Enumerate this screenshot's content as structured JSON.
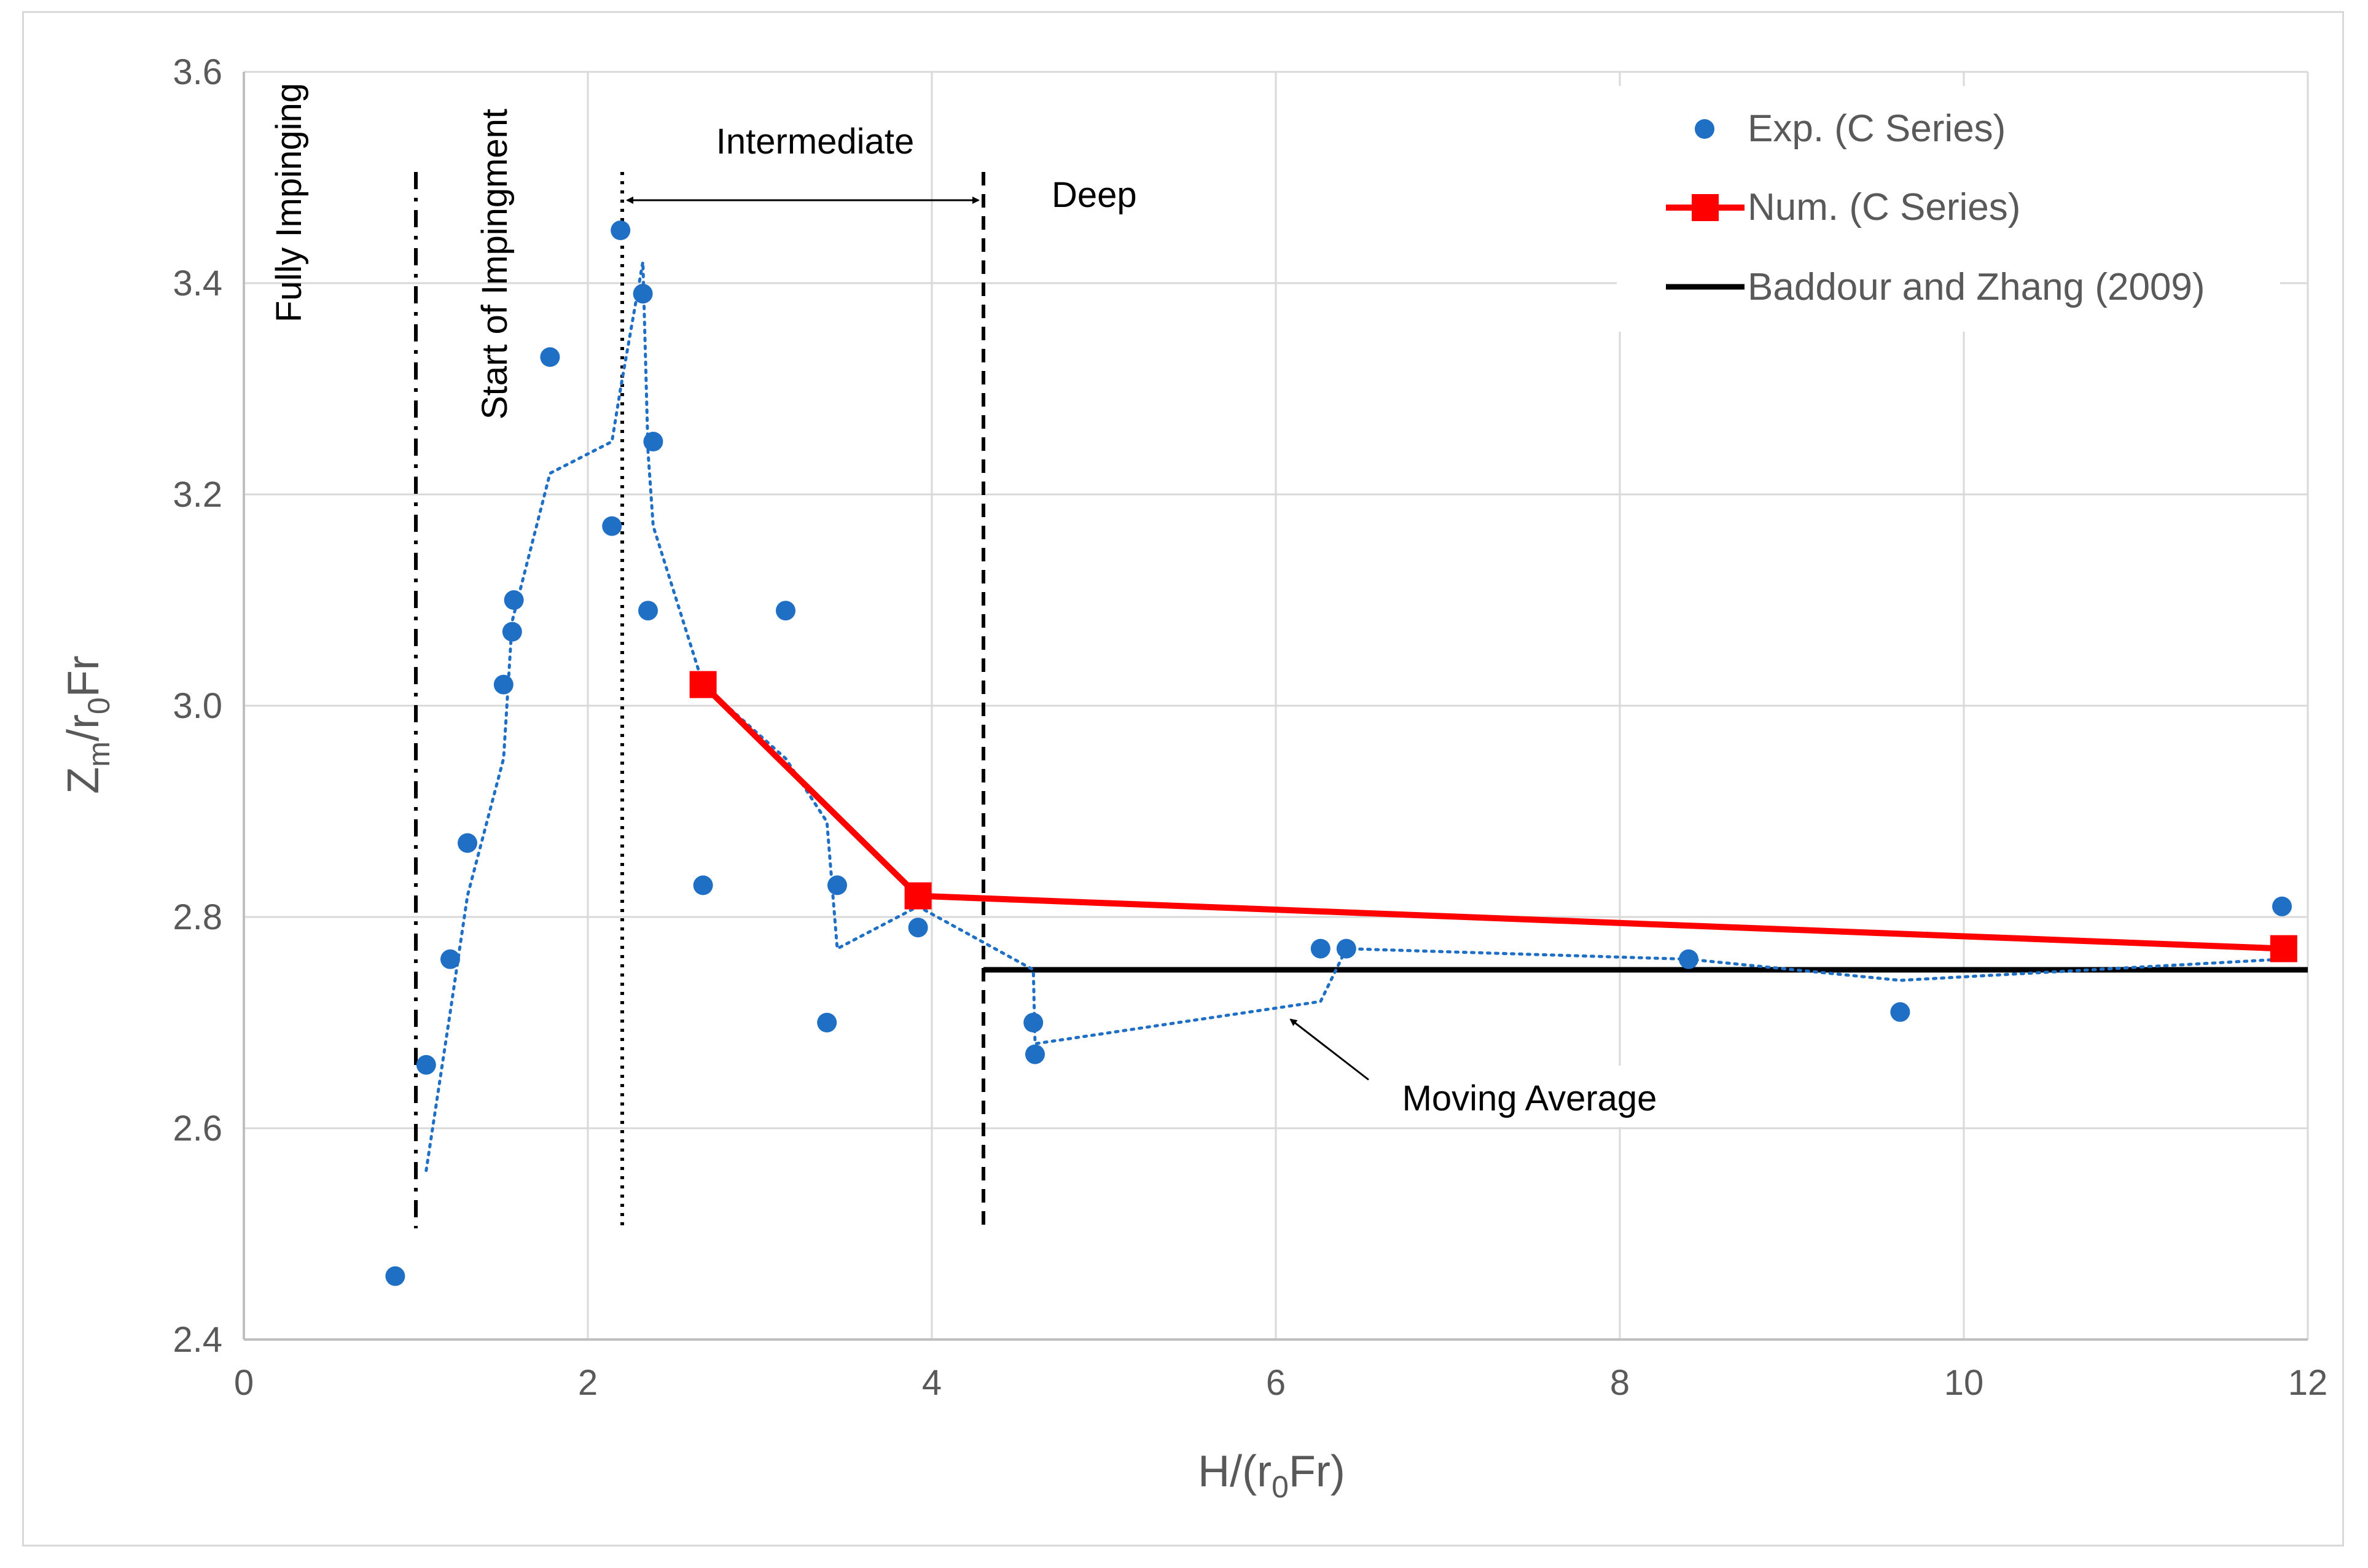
{
  "chart_data": {
    "type": "scatter",
    "title": "",
    "xlabel": "H/(r0Fr)",
    "ylabel": "Zm/r0Fr",
    "xlim": [
      0,
      12
    ],
    "ylim": [
      2.4,
      3.6
    ],
    "x_ticks": [
      "0",
      "2",
      "4",
      "6",
      "8",
      "10",
      "12"
    ],
    "y_ticks": [
      "2.4",
      "2.6",
      "2.8",
      "3.0",
      "3.2",
      "3.4",
      "3.6"
    ],
    "grid": true,
    "legend_position": "top-right",
    "series": [
      {
        "name": "Exp. (C Series)",
        "kind": "scatter",
        "color": "#1f6fc5",
        "x": [
          0.88,
          1.06,
          1.2,
          1.3,
          1.51,
          1.56,
          1.57,
          1.78,
          2.14,
          2.19,
          2.32,
          2.35,
          2.38,
          2.67,
          3.15,
          3.39,
          3.45,
          3.92,
          4.59,
          4.6,
          6.26,
          6.41,
          8.4,
          9.63,
          11.85
        ],
        "y": [
          2.46,
          2.66,
          2.76,
          2.87,
          3.02,
          3.07,
          3.1,
          3.33,
          3.17,
          3.45,
          3.39,
          3.09,
          3.25,
          2.83,
          3.09,
          2.7,
          2.83,
          2.79,
          2.7,
          2.67,
          2.77,
          2.77,
          2.76,
          2.71,
          2.81
        ]
      },
      {
        "name": "Num. (C Series)",
        "kind": "line-marker",
        "color": "#ff0000",
        "x": [
          2.67,
          3.92,
          11.86
        ],
        "y": [
          3.02,
          2.82,
          2.77
        ]
      },
      {
        "name": "Baddour and Zhang (2009)",
        "kind": "line",
        "color": "#000000",
        "x": [
          4.3,
          12.0
        ],
        "y": [
          2.75,
          2.75
        ]
      },
      {
        "name": "Moving Average",
        "kind": "dotted-line",
        "color": "#1f6fc5",
        "x": [
          1.06,
          1.2,
          1.3,
          1.51,
          1.56,
          1.78,
          2.14,
          2.19,
          2.32,
          2.35,
          2.38,
          2.67,
          3.15,
          3.39,
          3.45,
          3.92,
          4.59,
          4.6,
          6.26,
          6.41,
          8.4,
          9.63,
          11.85
        ],
        "y": [
          2.56,
          2.71,
          2.82,
          2.95,
          3.08,
          3.22,
          3.25,
          3.3,
          3.42,
          3.24,
          3.17,
          3.02,
          2.95,
          2.89,
          2.77,
          2.81,
          2.75,
          2.68,
          2.72,
          2.77,
          2.76,
          2.74,
          2.76
        ]
      }
    ],
    "regime_lines": [
      {
        "x": 1.0,
        "style": "dash-dot",
        "label": "Fully Impinging"
      },
      {
        "x": 2.2,
        "style": "dotted",
        "label": "Start of Impingment"
      },
      {
        "x": 4.3,
        "style": "dashed",
        "label": ""
      }
    ],
    "annotations": [
      {
        "text": "Intermediate",
        "x_from": 2.2,
        "x_to": 4.3,
        "y": 3.47
      },
      {
        "text": "Deep",
        "x": 4.7,
        "y": 3.48
      },
      {
        "text": "Moving Average",
        "arrow_to_x": 6.05,
        "arrow_to_y": 2.71
      }
    ]
  }
}
